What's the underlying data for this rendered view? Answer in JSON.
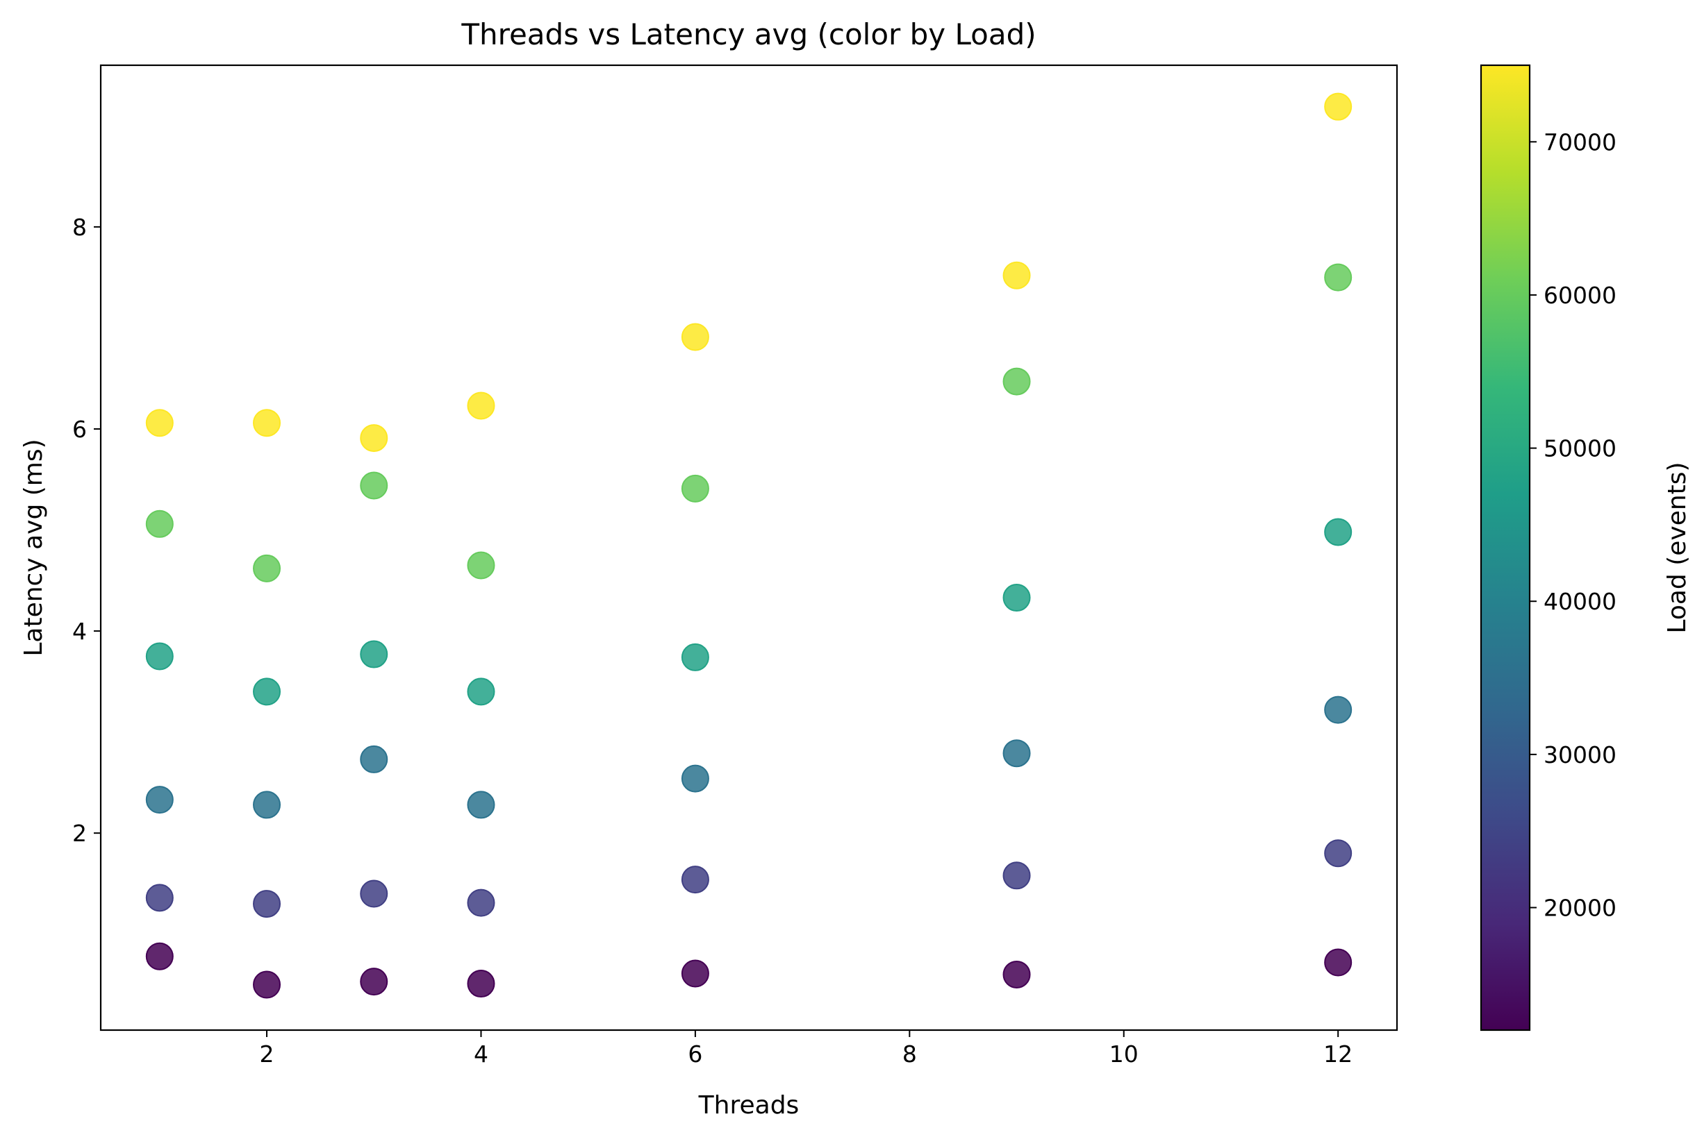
{
  "chart_data": {
    "type": "scatter",
    "title": "Threads vs Latency avg (color by Load)",
    "xlabel": "Threads",
    "ylabel": "Latency avg (ms)",
    "xlim": [
      0.45,
      12.55
    ],
    "ylim": [
      0.05,
      9.6
    ],
    "xticks": [
      2,
      4,
      6,
      8,
      10,
      12
    ],
    "yticks": [
      2,
      4,
      6,
      8
    ],
    "grid": false,
    "colorbar": {
      "label": "Load (events)",
      "range": [
        12000,
        75000
      ],
      "ticks": [
        20000,
        30000,
        40000,
        50000,
        60000,
        70000
      ],
      "colormap": "viridis"
    },
    "series": [
      {
        "load": 12000,
        "points": [
          {
            "x": 1,
            "y": 0.78
          },
          {
            "x": 2,
            "y": 0.5
          },
          {
            "x": 3,
            "y": 0.53
          },
          {
            "x": 4,
            "y": 0.51
          },
          {
            "x": 6,
            "y": 0.61
          },
          {
            "x": 9,
            "y": 0.6
          },
          {
            "x": 12,
            "y": 0.72
          }
        ]
      },
      {
        "load": 24000,
        "points": [
          {
            "x": 1,
            "y": 1.36
          },
          {
            "x": 2,
            "y": 1.3
          },
          {
            "x": 3,
            "y": 1.4
          },
          {
            "x": 4,
            "y": 1.31
          },
          {
            "x": 6,
            "y": 1.54
          },
          {
            "x": 9,
            "y": 1.58
          },
          {
            "x": 12,
            "y": 1.8
          }
        ]
      },
      {
        "load": 36000,
        "points": [
          {
            "x": 1,
            "y": 2.33
          },
          {
            "x": 2,
            "y": 2.28
          },
          {
            "x": 3,
            "y": 2.73
          },
          {
            "x": 4,
            "y": 2.28
          },
          {
            "x": 6,
            "y": 2.54
          },
          {
            "x": 9,
            "y": 2.79
          },
          {
            "x": 12,
            "y": 3.22
          }
        ]
      },
      {
        "load": 48000,
        "points": [
          {
            "x": 1,
            "y": 3.75
          },
          {
            "x": 2,
            "y": 3.4
          },
          {
            "x": 3,
            "y": 3.77
          },
          {
            "x": 4,
            "y": 3.4
          },
          {
            "x": 6,
            "y": 3.74
          },
          {
            "x": 9,
            "y": 4.33
          },
          {
            "x": 12,
            "y": 4.98
          }
        ]
      },
      {
        "load": 60000,
        "points": [
          {
            "x": 1,
            "y": 5.06
          },
          {
            "x": 2,
            "y": 4.62
          },
          {
            "x": 3,
            "y": 5.44
          },
          {
            "x": 4,
            "y": 4.65
          },
          {
            "x": 6,
            "y": 5.41
          },
          {
            "x": 9,
            "y": 6.47
          },
          {
            "x": 12,
            "y": 7.5
          }
        ]
      },
      {
        "load": 75000,
        "points": [
          {
            "x": 1,
            "y": 6.06
          },
          {
            "x": 2,
            "y": 6.06
          },
          {
            "x": 3,
            "y": 5.91
          },
          {
            "x": 4,
            "y": 6.23
          },
          {
            "x": 6,
            "y": 6.91
          },
          {
            "x": 9,
            "y": 7.52
          },
          {
            "x": 12,
            "y": 9.19
          }
        ]
      }
    ]
  }
}
